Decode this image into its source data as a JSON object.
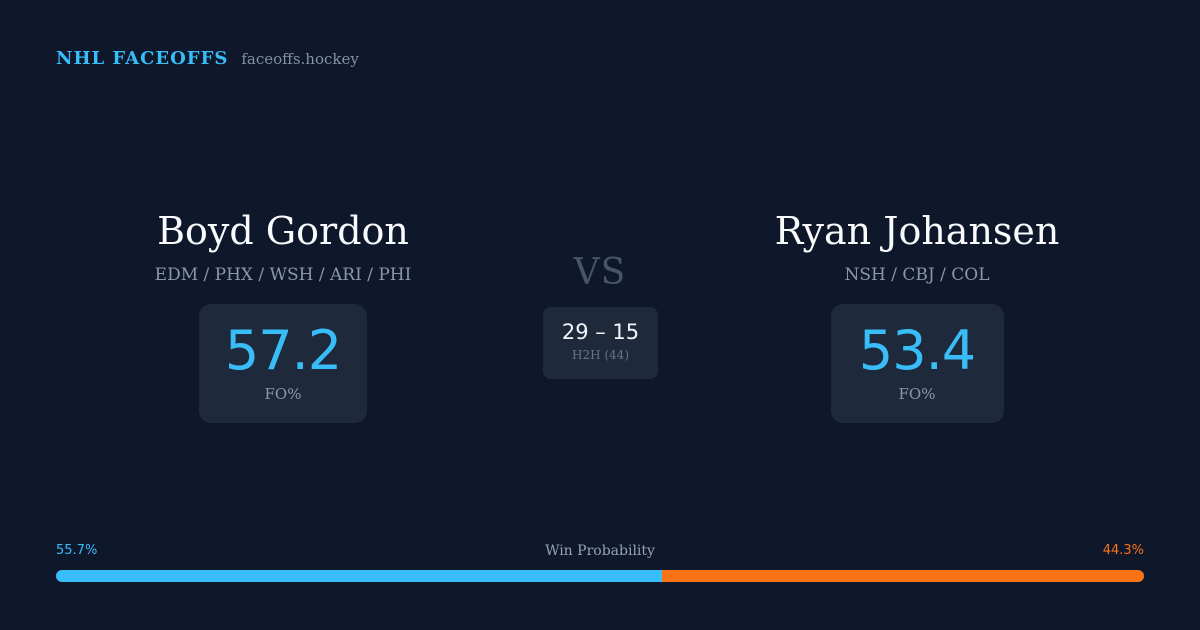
{
  "brand": {
    "name": "NHL FACEOFFS",
    "site": "faceoffs.hockey"
  },
  "player_left": {
    "name": "Boyd Gordon",
    "teams": "EDM / PHX / WSH / ARI / PHI",
    "fo_pct": "57.2",
    "fo_label": "FO%"
  },
  "player_right": {
    "name": "Ryan Johansen",
    "teams": "NSH / CBJ / COL",
    "fo_pct": "53.4",
    "fo_label": "FO%"
  },
  "versus": {
    "label": "VS",
    "h2h_score": "29 – 15",
    "h2h_label": "H2H (44)"
  },
  "win_probability": {
    "label": "Win Probability",
    "left_pct_text": "55.7%",
    "right_pct_text": "44.3%",
    "left_fraction": 0.557,
    "right_fraction": 0.443,
    "left_color": "#38bdf8",
    "right_color": "#f97316"
  },
  "colors": {
    "background": "#0f172a",
    "card": "#1e293b",
    "accent": "#38bdf8",
    "opponent_accent": "#f97316"
  }
}
